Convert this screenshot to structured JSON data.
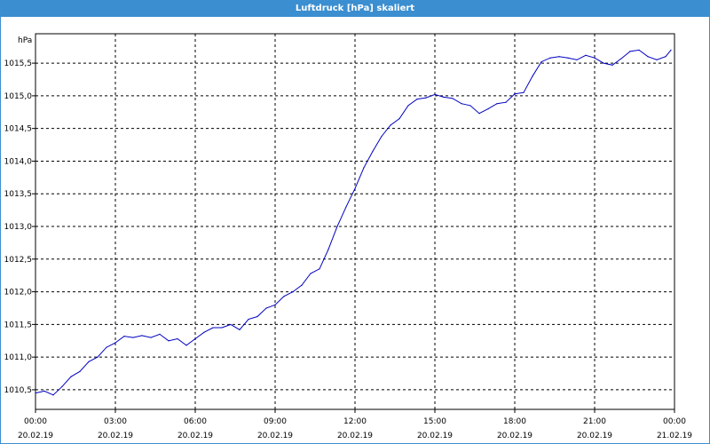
{
  "window": {
    "title": "Luftdruck [hPa] skaliert"
  },
  "colors": {
    "titlebar": "#3b8ed0",
    "series": "#0000c0",
    "grid": "#000000"
  },
  "chart_data": {
    "type": "line",
    "title": "Luftdruck [hPa] skaliert",
    "ylabel": "hPa",
    "xlabel": "",
    "xlim": [
      "2019-02-20 00:00",
      "2019-02-21 00:00"
    ],
    "ylim": [
      1010.2,
      1015.95
    ],
    "grid": true,
    "y_ticks": [
      {
        "value": 1010.5,
        "label": "1010,5"
      },
      {
        "value": 1011.0,
        "label": "1011,0"
      },
      {
        "value": 1011.5,
        "label": "1011,5"
      },
      {
        "value": 1012.0,
        "label": "1012,0"
      },
      {
        "value": 1012.5,
        "label": "1012,5"
      },
      {
        "value": 1013.0,
        "label": "1013,0"
      },
      {
        "value": 1013.5,
        "label": "1013,5"
      },
      {
        "value": 1014.0,
        "label": "1014,0"
      },
      {
        "value": 1014.5,
        "label": "1014,5"
      },
      {
        "value": 1015.0,
        "label": "1015,0"
      },
      {
        "value": 1015.5,
        "label": "1015,5"
      }
    ],
    "x_ticks": [
      {
        "value": "2019-02-20 00:00",
        "time": "00:00",
        "date": "20.02.19"
      },
      {
        "value": "2019-02-20 03:00",
        "time": "03:00",
        "date": "20.02.19"
      },
      {
        "value": "2019-02-20 06:00",
        "time": "06:00",
        "date": "20.02.19"
      },
      {
        "value": "2019-02-20 09:00",
        "time": "09:00",
        "date": "20.02.19"
      },
      {
        "value": "2019-02-20 12:00",
        "time": "12:00",
        "date": "20.02.19"
      },
      {
        "value": "2019-02-20 15:00",
        "time": "15:00",
        "date": "20.02.19"
      },
      {
        "value": "2019-02-20 18:00",
        "time": "18:00",
        "date": "20.02.19"
      },
      {
        "value": "2019-02-20 21:00",
        "time": "21:00",
        "date": "20.02.19"
      },
      {
        "value": "2019-02-21 00:00",
        "time": "00:00",
        "date": "21.02.19"
      }
    ],
    "series": [
      {
        "x": [
          "2019-02-20 00:00",
          "2019-02-20 00:20",
          "2019-02-20 00:40",
          "2019-02-20 01:00",
          "2019-02-20 01:20",
          "2019-02-20 01:40",
          "2019-02-20 02:00",
          "2019-02-20 02:20",
          "2019-02-20 02:40",
          "2019-02-20 03:00",
          "2019-02-20 03:20",
          "2019-02-20 03:40",
          "2019-02-20 04:00",
          "2019-02-20 04:20",
          "2019-02-20 04:40",
          "2019-02-20 05:00",
          "2019-02-20 05:20",
          "2019-02-20 05:40",
          "2019-02-20 06:00",
          "2019-02-20 06:20",
          "2019-02-20 06:40",
          "2019-02-20 07:00",
          "2019-02-20 07:20",
          "2019-02-20 07:40",
          "2019-02-20 08:00",
          "2019-02-20 08:20",
          "2019-02-20 08:40",
          "2019-02-20 09:00",
          "2019-02-20 09:20",
          "2019-02-20 09:40",
          "2019-02-20 10:00",
          "2019-02-20 10:20",
          "2019-02-20 10:40",
          "2019-02-20 11:00",
          "2019-02-20 11:20",
          "2019-02-20 11:40",
          "2019-02-20 12:00",
          "2019-02-20 12:20",
          "2019-02-20 12:40",
          "2019-02-20 13:00",
          "2019-02-20 13:20",
          "2019-02-20 13:40",
          "2019-02-20 14:00",
          "2019-02-20 14:20",
          "2019-02-20 14:40",
          "2019-02-20 15:00",
          "2019-02-20 15:20",
          "2019-02-20 15:40",
          "2019-02-20 16:00",
          "2019-02-20 16:20",
          "2019-02-20 16:40",
          "2019-02-20 17:00",
          "2019-02-20 17:20",
          "2019-02-20 17:40",
          "2019-02-20 18:00",
          "2019-02-20 18:20",
          "2019-02-20 18:40",
          "2019-02-20 19:00",
          "2019-02-20 19:20",
          "2019-02-20 19:40",
          "2019-02-20 20:00",
          "2019-02-20 20:20",
          "2019-02-20 20:40",
          "2019-02-20 21:00",
          "2019-02-20 21:20",
          "2019-02-20 21:40",
          "2019-02-20 22:00",
          "2019-02-20 22:20",
          "2019-02-20 22:40",
          "2019-02-20 23:00",
          "2019-02-20 23:20",
          "2019-02-20 23:40",
          "2019-02-20 23:52"
        ],
        "y": [
          1010.45,
          1010.48,
          1010.42,
          1010.55,
          1010.7,
          1010.78,
          1010.93,
          1011.0,
          1011.15,
          1011.22,
          1011.32,
          1011.3,
          1011.33,
          1011.3,
          1011.35,
          1011.25,
          1011.28,
          1011.18,
          1011.28,
          1011.38,
          1011.45,
          1011.45,
          1011.5,
          1011.42,
          1011.58,
          1011.62,
          1011.75,
          1011.8,
          1011.93,
          1012.0,
          1012.1,
          1012.28,
          1012.35,
          1012.65,
          1013.0,
          1013.3,
          1013.58,
          1013.9,
          1014.15,
          1014.38,
          1014.55,
          1014.65,
          1014.85,
          1014.95,
          1014.97,
          1015.02,
          1014.98,
          1014.96,
          1014.88,
          1014.85,
          1014.73,
          1014.8,
          1014.88,
          1014.9,
          1015.03,
          1015.05,
          1015.3,
          1015.52,
          1015.58,
          1015.6,
          1015.58,
          1015.55,
          1015.62,
          1015.58,
          1015.5,
          1015.47,
          1015.57,
          1015.68,
          1015.7,
          1015.6,
          1015.55,
          1015.6,
          1015.7
        ]
      }
    ]
  }
}
